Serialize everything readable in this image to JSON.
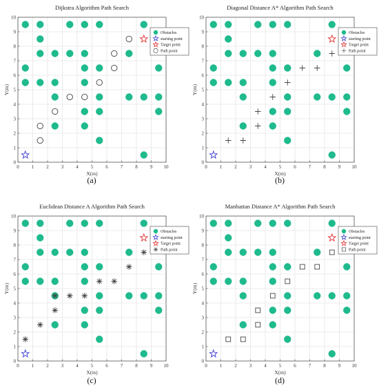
{
  "colors": {
    "obstacle": "#1fba8d",
    "start": "#3a3ad0",
    "target": "#e03030",
    "path": "#444444",
    "grid": "#dddddd",
    "axis": "#555555"
  },
  "chart_data": [
    {
      "type": "scatter",
      "panel_label": "(a)",
      "title": "Dijkstra Algorithm Path Search",
      "xlabel": "X(m)",
      "ylabel": "Y(m)",
      "xlim": [
        0,
        10
      ],
      "ylim": [
        0,
        10
      ],
      "xticks": [
        0,
        1,
        2,
        3,
        4,
        5,
        6,
        7,
        8,
        9,
        10
      ],
      "yticks": [
        0,
        1,
        2,
        3,
        4,
        5,
        6,
        7,
        8,
        9,
        10
      ],
      "grid": true,
      "legend": [
        {
          "label": "Obstacles",
          "marker": "filled-circle"
        },
        {
          "label": "starting point",
          "marker": "star-blue"
        },
        {
          "label": "Target point",
          "marker": "star-red"
        },
        {
          "label": "Path point",
          "marker": "open-circle"
        }
      ],
      "obstacles": [
        [
          0.5,
          9.5
        ],
        [
          1.5,
          9.5
        ],
        [
          3.5,
          9.5
        ],
        [
          4.5,
          9.5
        ],
        [
          5.5,
          9.5
        ],
        [
          8.5,
          9.5
        ],
        [
          1.5,
          8.5
        ],
        [
          1.5,
          7.5
        ],
        [
          2.5,
          7.5
        ],
        [
          3.5,
          7.5
        ],
        [
          4.5,
          7.5
        ],
        [
          7.5,
          7.5
        ],
        [
          0.5,
          6.5
        ],
        [
          4.5,
          6.5
        ],
        [
          5.5,
          6.5
        ],
        [
          9.5,
          6.5
        ],
        [
          0.5,
          5.5
        ],
        [
          1.5,
          5.5
        ],
        [
          2.5,
          5.5
        ],
        [
          4.5,
          5.5
        ],
        [
          2.5,
          4.5
        ],
        [
          5.5,
          4.5
        ],
        [
          7.5,
          4.5
        ],
        [
          8.5,
          4.5
        ],
        [
          9.5,
          4.5
        ],
        [
          4.5,
          3.5
        ],
        [
          5.5,
          3.5
        ],
        [
          9.5,
          3.5
        ],
        [
          2.5,
          2.5
        ],
        [
          4.5,
          2.5
        ],
        [
          5.5,
          1.5
        ],
        [
          8.5,
          0.5
        ]
      ],
      "start": [
        0.5,
        0.5
      ],
      "target": [
        8.5,
        8.5
      ],
      "path_marker": "open-circle",
      "path": [
        [
          1.5,
          1.5
        ],
        [
          1.5,
          2.5
        ],
        [
          2.5,
          3.5
        ],
        [
          3.5,
          4.5
        ],
        [
          4.5,
          4.5
        ],
        [
          5.5,
          5.5
        ],
        [
          6.5,
          6.5
        ],
        [
          6.5,
          7.5
        ],
        [
          7.5,
          8.5
        ]
      ]
    },
    {
      "type": "scatter",
      "panel_label": "(b)",
      "title": "Diagonal Distance A* Algorithm Path Search",
      "xlabel": "X(m)",
      "ylabel": "Y(m)",
      "xlim": [
        0,
        10
      ],
      "ylim": [
        0,
        10
      ],
      "xticks": [
        0,
        1,
        2,
        3,
        4,
        5,
        6,
        7,
        8,
        9,
        10
      ],
      "yticks": [
        0,
        1,
        2,
        3,
        4,
        5,
        6,
        7,
        8,
        9,
        10
      ],
      "grid": true,
      "legend": [
        {
          "label": "Obstacles",
          "marker": "filled-circle"
        },
        {
          "label": "starting point",
          "marker": "star-blue"
        },
        {
          "label": "Target point",
          "marker": "star-red"
        },
        {
          "label": "Path point",
          "marker": "plus"
        }
      ],
      "obstacles": [
        [
          0.5,
          9.5
        ],
        [
          1.5,
          9.5
        ],
        [
          3.5,
          9.5
        ],
        [
          4.5,
          9.5
        ],
        [
          5.5,
          9.5
        ],
        [
          8.5,
          9.5
        ],
        [
          1.5,
          8.5
        ],
        [
          1.5,
          7.5
        ],
        [
          2.5,
          7.5
        ],
        [
          3.5,
          7.5
        ],
        [
          4.5,
          7.5
        ],
        [
          7.5,
          7.5
        ],
        [
          0.5,
          6.5
        ],
        [
          4.5,
          6.5
        ],
        [
          5.5,
          6.5
        ],
        [
          9.5,
          6.5
        ],
        [
          0.5,
          5.5
        ],
        [
          1.5,
          5.5
        ],
        [
          2.5,
          5.5
        ],
        [
          4.5,
          5.5
        ],
        [
          2.5,
          4.5
        ],
        [
          5.5,
          4.5
        ],
        [
          7.5,
          4.5
        ],
        [
          8.5,
          4.5
        ],
        [
          9.5,
          4.5
        ],
        [
          4.5,
          3.5
        ],
        [
          5.5,
          3.5
        ],
        [
          9.5,
          3.5
        ],
        [
          2.5,
          2.5
        ],
        [
          4.5,
          2.5
        ],
        [
          5.5,
          1.5
        ],
        [
          8.5,
          0.5
        ]
      ],
      "start": [
        0.5,
        0.5
      ],
      "target": [
        8.5,
        8.5
      ],
      "path_marker": "plus",
      "path": [
        [
          1.5,
          1.5
        ],
        [
          2.5,
          1.5
        ],
        [
          3.5,
          2.5
        ],
        [
          3.5,
          3.5
        ],
        [
          4.5,
          4.5
        ],
        [
          5.5,
          5.5
        ],
        [
          6.5,
          6.5
        ],
        [
          7.5,
          6.5
        ],
        [
          8.5,
          7.5
        ]
      ]
    },
    {
      "type": "scatter",
      "panel_label": "(c)",
      "title": "Euclidean Distance A Algorithm Path Search",
      "xlabel": "X(m)",
      "ylabel": "Y(m)",
      "xlim": [
        0,
        10
      ],
      "ylim": [
        0,
        10
      ],
      "xticks": [
        0,
        1,
        2,
        3,
        4,
        5,
        6,
        7,
        8,
        9,
        10
      ],
      "yticks": [
        0,
        1,
        2,
        3,
        4,
        5,
        6,
        7,
        8,
        9,
        10
      ],
      "grid": true,
      "legend": [
        {
          "label": "Obstacles",
          "marker": "filled-circle"
        },
        {
          "label": "starting point",
          "marker": "star-blue"
        },
        {
          "label": "Target point",
          "marker": "star-red"
        },
        {
          "label": "Path point",
          "marker": "asterisk"
        }
      ],
      "obstacles": [
        [
          0.5,
          9.5
        ],
        [
          1.5,
          9.5
        ],
        [
          3.5,
          9.5
        ],
        [
          4.5,
          9.5
        ],
        [
          5.5,
          9.5
        ],
        [
          8.5,
          9.5
        ],
        [
          1.5,
          8.5
        ],
        [
          1.5,
          7.5
        ],
        [
          2.5,
          7.5
        ],
        [
          3.5,
          7.5
        ],
        [
          4.5,
          7.5
        ],
        [
          7.5,
          7.5
        ],
        [
          0.5,
          6.5
        ],
        [
          4.5,
          6.5
        ],
        [
          5.5,
          6.5
        ],
        [
          9.5,
          6.5
        ],
        [
          0.5,
          5.5
        ],
        [
          1.5,
          5.5
        ],
        [
          2.5,
          5.5
        ],
        [
          4.5,
          5.5
        ],
        [
          2.5,
          4.5
        ],
        [
          5.5,
          4.5
        ],
        [
          7.5,
          4.5
        ],
        [
          8.5,
          4.5
        ],
        [
          9.5,
          4.5
        ],
        [
          4.5,
          3.5
        ],
        [
          5.5,
          3.5
        ],
        [
          9.5,
          3.5
        ],
        [
          2.5,
          2.5
        ],
        [
          4.5,
          2.5
        ],
        [
          5.5,
          1.5
        ],
        [
          8.5,
          0.5
        ]
      ],
      "start": [
        0.5,
        0.5
      ],
      "target": [
        8.5,
        8.5
      ],
      "path_marker": "asterisk",
      "path": [
        [
          0.5,
          1.5
        ],
        [
          1.5,
          2.5
        ],
        [
          2.5,
          3.5
        ],
        [
          2.5,
          4.5
        ],
        [
          3.5,
          4.5
        ],
        [
          4.5,
          4.5
        ],
        [
          5.5,
          5.5
        ],
        [
          6.5,
          5.5
        ],
        [
          7.5,
          6.5
        ],
        [
          8.5,
          7.5
        ]
      ]
    },
    {
      "type": "scatter",
      "panel_label": "(d)",
      "title": "Manhattan Distance A* Algorithm Path Search",
      "xlabel": "X(m)",
      "ylabel": "Y(m)",
      "xlim": [
        0,
        10
      ],
      "ylim": [
        0,
        10
      ],
      "xticks": [
        0,
        1,
        2,
        3,
        4,
        5,
        6,
        7,
        8,
        9,
        10
      ],
      "yticks": [
        0,
        1,
        2,
        3,
        4,
        5,
        6,
        7,
        8,
        9,
        10
      ],
      "grid": true,
      "legend": [
        {
          "label": "Obstacles",
          "marker": "filled-circle"
        },
        {
          "label": "starting point",
          "marker": "star-blue"
        },
        {
          "label": "Target point",
          "marker": "star-red"
        },
        {
          "label": "Path point",
          "marker": "open-square"
        }
      ],
      "obstacles": [
        [
          0.5,
          9.5
        ],
        [
          1.5,
          9.5
        ],
        [
          3.5,
          9.5
        ],
        [
          4.5,
          9.5
        ],
        [
          5.5,
          9.5
        ],
        [
          8.5,
          9.5
        ],
        [
          1.5,
          8.5
        ],
        [
          1.5,
          7.5
        ],
        [
          2.5,
          7.5
        ],
        [
          3.5,
          7.5
        ],
        [
          4.5,
          7.5
        ],
        [
          7.5,
          7.5
        ],
        [
          0.5,
          6.5
        ],
        [
          4.5,
          6.5
        ],
        [
          5.5,
          6.5
        ],
        [
          9.5,
          6.5
        ],
        [
          0.5,
          5.5
        ],
        [
          1.5,
          5.5
        ],
        [
          2.5,
          5.5
        ],
        [
          4.5,
          5.5
        ],
        [
          2.5,
          4.5
        ],
        [
          5.5,
          4.5
        ],
        [
          7.5,
          4.5
        ],
        [
          8.5,
          4.5
        ],
        [
          9.5,
          4.5
        ],
        [
          4.5,
          3.5
        ],
        [
          5.5,
          3.5
        ],
        [
          9.5,
          3.5
        ],
        [
          2.5,
          2.5
        ],
        [
          4.5,
          2.5
        ],
        [
          5.5,
          1.5
        ],
        [
          8.5,
          0.5
        ]
      ],
      "start": [
        0.5,
        0.5
      ],
      "target": [
        8.5,
        8.5
      ],
      "path_marker": "open-square",
      "path": [
        [
          1.5,
          1.5
        ],
        [
          2.5,
          1.5
        ],
        [
          3.5,
          2.5
        ],
        [
          3.5,
          3.5
        ],
        [
          4.5,
          4.5
        ],
        [
          5.5,
          5.5
        ],
        [
          6.5,
          6.5
        ],
        [
          7.5,
          6.5
        ],
        [
          8.5,
          7.5
        ]
      ]
    }
  ]
}
